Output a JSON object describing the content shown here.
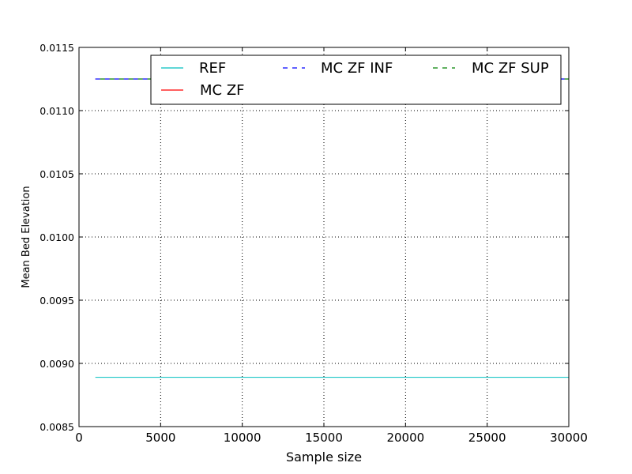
{
  "chart_data": {
    "type": "line",
    "title": "",
    "xlabel": "Sample size",
    "ylabel": "Mean Bed Elevation",
    "xlim": [
      0,
      30000
    ],
    "ylim": [
      0.0085,
      0.0115
    ],
    "x_ticks": [
      0,
      5000,
      10000,
      15000,
      20000,
      25000,
      30000
    ],
    "x_tick_labels": [
      "0",
      "5000",
      "10000",
      "15000",
      "20000",
      "25000",
      "30000"
    ],
    "y_ticks": [
      0.0085,
      0.009,
      0.0095,
      0.01,
      0.0105,
      0.011,
      0.0115
    ],
    "y_tick_labels": [
      "0.0085",
      "0.0090",
      "0.0095",
      "0.0100",
      "0.0105",
      "0.0110",
      "0.0115"
    ],
    "grid": true,
    "legend": {
      "placement": "top-right",
      "columns": 3
    },
    "series": [
      {
        "name": "REF",
        "color": "#00bfbf",
        "dash": "solid",
        "x": [
          1000,
          30000
        ],
        "y": [
          0.00889,
          0.00889
        ]
      },
      {
        "name": "MC ZF",
        "color": "#ff0000",
        "dash": "solid",
        "x": [
          1000,
          30000
        ],
        "y": [
          0.01125,
          0.01125
        ]
      },
      {
        "name": "MC ZF INF",
        "color": "#0000ff",
        "dash": "dashed",
        "x": [
          1000,
          30000
        ],
        "y": [
          0.01125,
          0.01125
        ]
      },
      {
        "name": "MC ZF SUP",
        "color": "#008000",
        "dash": "dashed",
        "x": [
          1000,
          30000
        ],
        "y": [
          0.01125,
          0.01125
        ]
      }
    ]
  }
}
